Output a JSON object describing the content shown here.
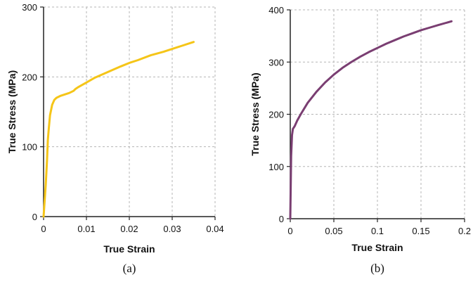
{
  "chart_data": [
    {
      "type": "line",
      "panel_label": "(a)",
      "xlabel": "True Strain",
      "ylabel": "True Stress (MPa)",
      "xlim": [
        0,
        0.04
      ],
      "ylim": [
        0,
        300
      ],
      "xticks": [
        0,
        0.01,
        0.02,
        0.03,
        0.04
      ],
      "xtick_labels": [
        "0",
        "0.01",
        "0.02",
        "0.03",
        "0.04"
      ],
      "yticks": [
        0,
        100,
        200,
        300
      ],
      "ytick_labels": [
        "0",
        "100",
        "200",
        "300"
      ],
      "grid": true,
      "color": "#f5c518",
      "series": [
        {
          "x": [
            0,
            0.0005,
            0.0008,
            0.001,
            0.0012,
            0.0015,
            0.002,
            0.0025,
            0.003,
            0.004,
            0.005,
            0.006,
            0.007,
            0.0075,
            0.008,
            0.01,
            0.012,
            0.015,
            0.018,
            0.02,
            0.022,
            0.025,
            0.028,
            0.03,
            0.032,
            0.035
          ],
          "y": [
            0,
            45,
            80,
            110,
            125,
            145,
            160,
            167,
            170,
            173,
            175,
            177,
            180,
            183,
            185,
            192,
            199,
            207,
            215,
            220,
            224,
            231,
            236,
            240,
            244,
            250
          ]
        }
      ]
    },
    {
      "type": "line",
      "panel_label": "(b)",
      "xlabel": "True Strain",
      "ylabel": "True Stress (MPa)",
      "xlim": [
        0,
        0.2
      ],
      "ylim": [
        0,
        400
      ],
      "xticks": [
        0,
        0.05,
        0.1,
        0.15,
        0.2
      ],
      "xtick_labels": [
        "0",
        "0.05",
        "0.1",
        "0.15",
        "0.2"
      ],
      "yticks": [
        0,
        100,
        200,
        300,
        400
      ],
      "ytick_labels": [
        "0",
        "100",
        "200",
        "300",
        "400"
      ],
      "grid": true,
      "color": "#7a3e72",
      "series": [
        {
          "x": [
            0,
            0.001,
            0.002,
            0.003,
            0.005,
            0.008,
            0.012,
            0.02,
            0.03,
            0.04,
            0.05,
            0.06,
            0.07,
            0.08,
            0.09,
            0.1,
            0.11,
            0.12,
            0.13,
            0.14,
            0.15,
            0.16,
            0.17,
            0.185
          ],
          "y": [
            0,
            120,
            160,
            172,
            177,
            188,
            200,
            222,
            243,
            261,
            276,
            289,
            300,
            310,
            319,
            327,
            335,
            342,
            349,
            355,
            361,
            366,
            371,
            378
          ]
        }
      ]
    }
  ]
}
